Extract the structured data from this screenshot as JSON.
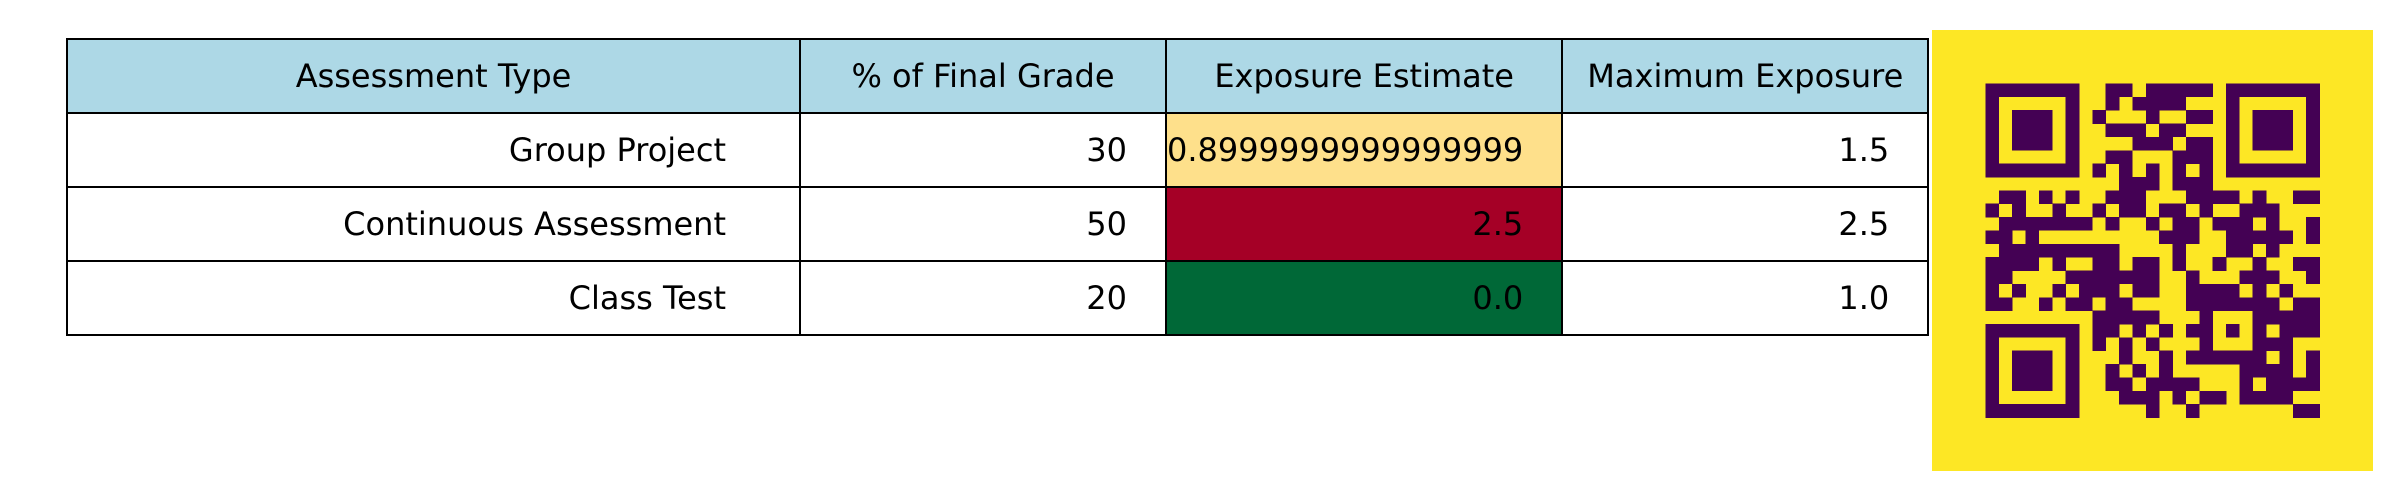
{
  "chart_data": {
    "type": "table",
    "columns": [
      "Assessment Type",
      "% of Final Grade",
      "Exposure Estimate",
      "Maximum Exposure"
    ],
    "rows": [
      [
        "Group Project",
        "30",
        "0.8999999999999999",
        "1.5"
      ],
      [
        "Continuous Assessment",
        "50",
        "2.5",
        "2.5"
      ],
      [
        "Class Test",
        "20",
        "0.0",
        "1.0"
      ]
    ],
    "exposure_cell_colors": [
      "#fee08b",
      "#a50026",
      "#006837"
    ],
    "header_color": "#add8e6"
  },
  "qr_code": {
    "foreground": "#440154",
    "background": "#fde725"
  }
}
